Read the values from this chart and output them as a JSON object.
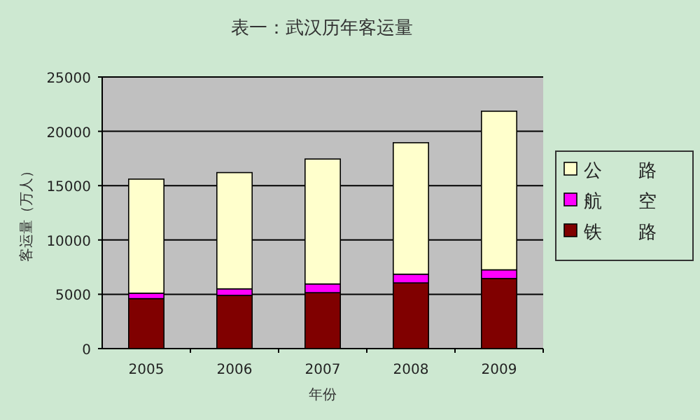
{
  "chart_data": {
    "type": "bar",
    "stacked": true,
    "title": "表一：武汉历年客运量",
    "xlabel": "年份",
    "ylabel": "客运量（万人）",
    "categories": [
      "2005",
      "2006",
      "2007",
      "2008",
      "2009"
    ],
    "series": [
      {
        "name": "铁　　路",
        "color": "#800000",
        "values": [
          4600,
          4900,
          5150,
          6050,
          6450
        ]
      },
      {
        "name": "航　　空",
        "color": "#ff00ff",
        "values": [
          500,
          600,
          800,
          800,
          800
        ]
      },
      {
        "name": "公　　路",
        "color": "#ffffcc",
        "values": [
          10500,
          10700,
          11500,
          12100,
          14600
        ]
      }
    ],
    "ylim": [
      0,
      25000
    ],
    "yticks": [
      0,
      5000,
      10000,
      15000,
      20000,
      25000
    ],
    "grid": "y",
    "legend": "right"
  }
}
